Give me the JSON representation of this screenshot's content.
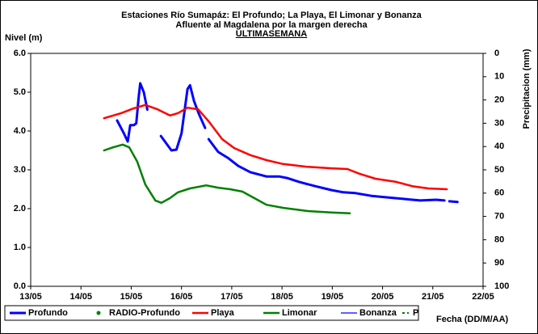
{
  "chart_data": {
    "type": "line",
    "title": [
      "Estaciones Río Sumapáz: El Profundo; La Playa, El Limonar y Bonanza",
      "Afluente al Magdalena por la margen derecha",
      "ULTIMASEMANA"
    ],
    "y_label": "Nivel (m)",
    "y2_label": "Precipitacion (mm)",
    "x_label": "Fecha (DD/M/AA)",
    "xlim": [
      13,
      22
    ],
    "xticks": [
      {
        "value": 13,
        "label": "13/05"
      },
      {
        "value": 14,
        "label": "14/05"
      },
      {
        "value": 15,
        "label": "15/05"
      },
      {
        "value": 16,
        "label": "16/05"
      },
      {
        "value": 17,
        "label": "17/05"
      },
      {
        "value": 18,
        "label": "18/05"
      },
      {
        "value": 19,
        "label": "19/05"
      },
      {
        "value": 20,
        "label": "20/05"
      },
      {
        "value": 21,
        "label": "21/05"
      },
      {
        "value": 22,
        "label": "22/05"
      }
    ],
    "ylim": [
      0,
      6
    ],
    "yticks": [
      {
        "value": 0,
        "label": "0.0"
      },
      {
        "value": 1,
        "label": "1.0"
      },
      {
        "value": 2,
        "label": "2.0"
      },
      {
        "value": 3,
        "label": "3.0"
      },
      {
        "value": 4,
        "label": "4.0"
      },
      {
        "value": 5,
        "label": "5.0"
      },
      {
        "value": 6,
        "label": "6.0"
      }
    ],
    "y2lim": [
      100,
      0
    ],
    "y2ticks": [
      0,
      10,
      20,
      30,
      40,
      50,
      60,
      70,
      80,
      90,
      100
    ],
    "grid": false,
    "legend": "bottom",
    "series": [
      {
        "name": "Profundo",
        "color": "#0000ff",
        "style": "line-thick",
        "x": [
          14.72,
          14.85,
          14.93,
          14.98,
          15.05,
          15.1,
          15.15,
          15.18,
          15.25,
          15.32,
          null,
          15.59,
          15.8,
          15.9,
          16.0,
          16.12,
          16.17,
          16.25,
          16.34,
          16.47,
          null,
          16.54,
          16.73,
          16.92,
          17.13,
          17.37,
          17.69,
          17.94,
          18.1,
          18.34,
          18.66,
          18.98,
          19.22,
          19.46,
          19.78,
          20.1,
          20.43,
          20.75,
          21.07,
          21.23,
          null,
          21.33,
          21.49
        ],
        "values": [
          4.27,
          3.95,
          3.73,
          4.15,
          4.15,
          4.2,
          4.9,
          5.23,
          5.0,
          4.55,
          null,
          3.87,
          3.5,
          3.52,
          3.94,
          5.08,
          5.18,
          4.77,
          4.46,
          4.08,
          null,
          3.79,
          3.46,
          3.31,
          3.1,
          2.94,
          2.83,
          2.83,
          2.79,
          2.69,
          2.58,
          2.48,
          2.42,
          2.4,
          2.33,
          2.29,
          2.25,
          2.21,
          2.23,
          2.21,
          null,
          2.19,
          2.17
        ]
      },
      {
        "name": "RADIO-Profundo",
        "color": "#008000",
        "style": "dot",
        "x": [],
        "values": []
      },
      {
        "name": "Playa",
        "color": "#ff0000",
        "style": "line",
        "x": [
          14.46,
          14.8,
          15.04,
          15.28,
          15.52,
          15.77,
          15.93,
          16.12,
          16.33,
          16.54,
          16.81,
          17.05,
          17.37,
          17.69,
          18.02,
          18.5,
          18.98,
          19.3,
          19.54,
          19.86,
          20.27,
          20.59,
          20.91,
          21.28
        ],
        "values": [
          4.33,
          4.46,
          4.58,
          4.67,
          4.56,
          4.4,
          4.46,
          4.6,
          4.56,
          4.25,
          3.79,
          3.56,
          3.38,
          3.25,
          3.15,
          3.08,
          3.04,
          3.02,
          2.9,
          2.77,
          2.69,
          2.58,
          2.52,
          2.5
        ]
      },
      {
        "name": "Limonar",
        "color": "#008000",
        "style": "line",
        "x": [
          14.46,
          14.64,
          14.83,
          14.96,
          15.12,
          15.28,
          15.48,
          15.6,
          15.77,
          15.93,
          16.17,
          16.49,
          16.73,
          16.97,
          17.21,
          17.45,
          17.69,
          18.02,
          18.5,
          18.98,
          19.35
        ],
        "values": [
          3.5,
          3.58,
          3.65,
          3.58,
          3.21,
          2.62,
          2.21,
          2.15,
          2.27,
          2.42,
          2.52,
          2.6,
          2.54,
          2.5,
          2.44,
          2.27,
          2.1,
          2.02,
          1.94,
          1.9,
          1.88
        ]
      },
      {
        "name": "Bonanza",
        "color": "#0000ff",
        "style": "line-thin",
        "x": [],
        "values": []
      },
      {
        "name": "P",
        "color": "#008000",
        "style": "dash",
        "x": [],
        "values": []
      }
    ]
  }
}
